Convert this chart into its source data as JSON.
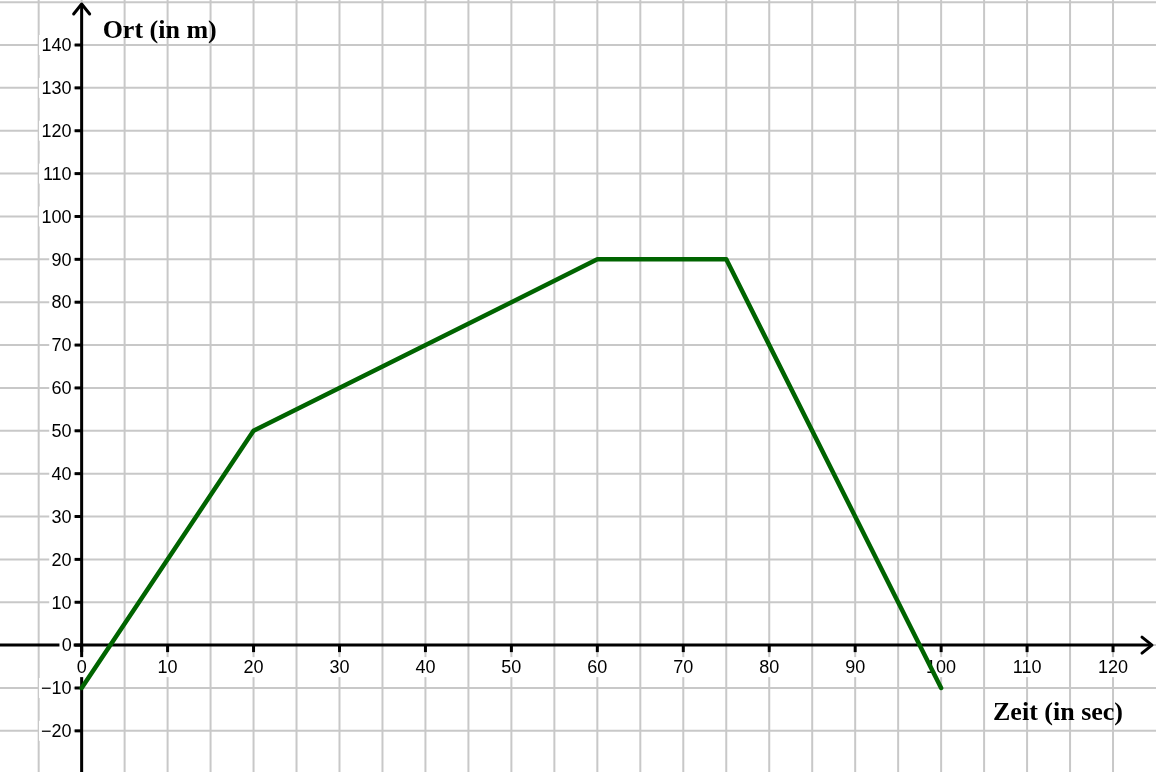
{
  "chart_data": {
    "type": "line",
    "xlabel": "Zeit (in sec)",
    "ylabel": "Ort (in m)",
    "x": [
      0,
      20,
      60,
      75,
      100
    ],
    "values": [
      -10,
      50,
      90,
      90,
      -10
    ],
    "color": "#006400",
    "xlim": [
      -9.5,
      125
    ],
    "ylim": [
      -29.6,
      150.5
    ],
    "xticks": [
      {
        "value": -5,
        "label": null
      },
      0,
      {
        "value": 5,
        "label": null
      },
      10,
      {
        "value": 15,
        "label": null
      },
      20,
      {
        "value": 25,
        "label": null
      },
      30,
      {
        "value": 35,
        "label": null
      },
      40,
      {
        "value": 45,
        "label": null
      },
      50,
      {
        "value": 55,
        "label": null
      },
      60,
      {
        "value": 65,
        "label": null
      },
      70,
      {
        "value": 75,
        "label": null
      },
      80,
      {
        "value": 85,
        "label": null
      },
      90,
      {
        "value": 95,
        "label": null
      },
      100,
      {
        "value": 105,
        "label": null
      },
      110,
      {
        "value": 115,
        "label": null
      },
      120
    ],
    "yticks": [
      {
        "value": -20,
        "label": "−20"
      },
      {
        "value": -10,
        "label": "−10"
      },
      0,
      10,
      20,
      30,
      40,
      50,
      60,
      70,
      80,
      90,
      100,
      110,
      120,
      130,
      140,
      {
        "value": 150,
        "label": null
      }
    ],
    "grid": true
  }
}
